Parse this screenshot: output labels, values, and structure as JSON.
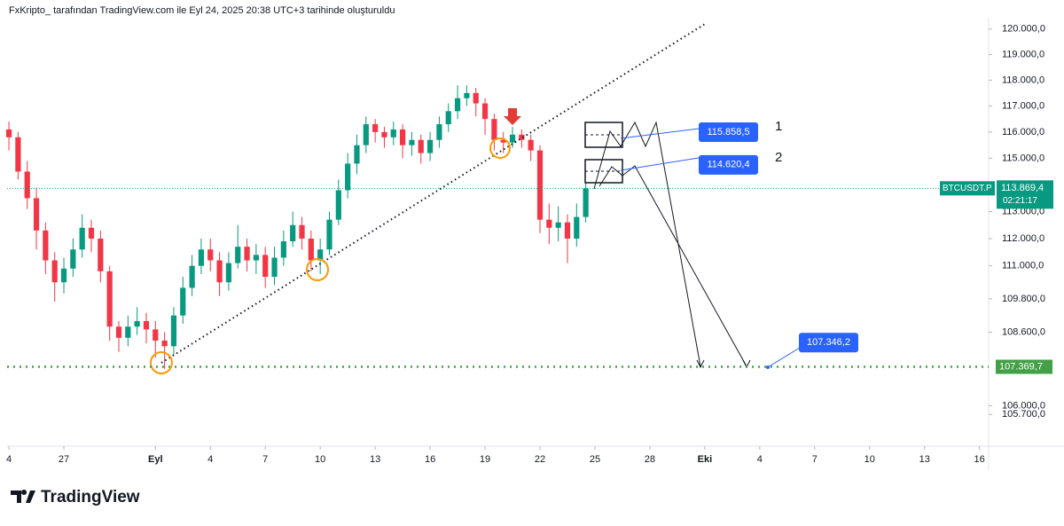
{
  "header": "FxKripto_ tarafından TradingView.com ile Eyl 24, 2025 20:38 UTC+3 tarihinde oluşturuldu",
  "footer": "TradingView",
  "chart_data": {
    "type": "candlestick",
    "symbol": "BTCUSDT.P",
    "x": [
      -8,
      -7.5,
      -7,
      -6.5,
      -6,
      -5.5,
      -5,
      -4.5,
      -4,
      -3.5,
      -3,
      -2.5,
      -2,
      -1.5,
      -1,
      -0.5,
      0,
      0.5,
      1,
      1.5,
      2,
      2.5,
      3,
      3.5,
      4,
      4.5,
      5,
      5.5,
      6,
      6.5,
      7,
      7.5,
      8,
      8.5,
      9,
      9.5,
      10,
      10.5,
      11,
      11.5,
      12,
      12.5,
      13,
      13.5,
      14,
      14.5,
      15,
      15.5,
      16,
      16.5,
      17,
      17.5,
      18,
      18.5,
      19,
      19.5,
      20,
      20.5,
      21,
      21.5,
      22,
      22.5,
      23,
      23.5
    ],
    "open": [
      116100,
      115800,
      114500,
      113500,
      112300,
      111200,
      110400,
      110900,
      111600,
      112400,
      112000,
      110800,
      108800,
      108400,
      108800,
      109000,
      108700,
      108300,
      108100,
      109200,
      110200,
      111000,
      111600,
      111200,
      110400,
      111100,
      111700,
      111200,
      111400,
      110600,
      111300,
      111900,
      112500,
      112000,
      111200,
      111600,
      112700,
      113800,
      114800,
      115500,
      116300,
      116000,
      115800,
      116100,
      115500,
      115700,
      115200,
      115700,
      116300,
      116800,
      117300,
      117500,
      117100,
      116500,
      115700,
      115600,
      115900,
      115700,
      115300,
      112700,
      112400,
      112600,
      112000,
      112800
    ],
    "high": [
      116400,
      116000,
      114900,
      113900,
      112600,
      111500,
      111300,
      112000,
      112900,
      112700,
      112300,
      111000,
      109000,
      109200,
      109500,
      109300,
      109000,
      108600,
      109500,
      110600,
      111400,
      112000,
      112000,
      111500,
      111500,
      112500,
      112000,
      111800,
      111700,
      111700,
      112300,
      113000,
      112800,
      112300,
      112000,
      113000,
      114200,
      115200,
      115900,
      116600,
      116500,
      116200,
      116400,
      116300,
      116000,
      115900,
      116000,
      116600,
      117100,
      117800,
      117800,
      117700,
      117300,
      116700,
      116000,
      116200,
      116100,
      115900,
      115500,
      113300,
      113200,
      112900,
      113300,
      114100
    ],
    "low": [
      115300,
      114200,
      113100,
      111600,
      110700,
      109700,
      110000,
      110600,
      111300,
      111500,
      110400,
      108300,
      107900,
      108100,
      108500,
      108200,
      107700,
      107300,
      107800,
      108900,
      109900,
      110700,
      110800,
      109900,
      110100,
      110900,
      110800,
      110700,
      110200,
      110300,
      111000,
      111700,
      111600,
      110800,
      110700,
      111400,
      112500,
      113500,
      114400,
      115200,
      115600,
      115400,
      115500,
      115000,
      115100,
      114800,
      114900,
      115400,
      116000,
      116500,
      117000,
      116600,
      115900,
      115300,
      115200,
      115400,
      115400,
      114900,
      112200,
      111800,
      111900,
      111100,
      111700,
      112600
    ],
    "close": [
      115800,
      114500,
      113500,
      112300,
      111200,
      110400,
      110900,
      111600,
      112400,
      112000,
      110800,
      108800,
      108400,
      108800,
      109000,
      108700,
      108300,
      108100,
      109200,
      110200,
      111000,
      111600,
      111200,
      110400,
      111100,
      111700,
      111200,
      111400,
      110600,
      111300,
      111900,
      112500,
      112000,
      111200,
      111600,
      112700,
      113800,
      114800,
      115500,
      116300,
      116000,
      115800,
      116100,
      115500,
      115700,
      115200,
      115700,
      116300,
      116800,
      117300,
      117500,
      117100,
      116500,
      115700,
      115600,
      115900,
      115700,
      115300,
      112700,
      112400,
      112600,
      112000,
      112800,
      113869.4
    ],
    "up_color": "#089981",
    "down_color": "#f23645",
    "log_scale": true,
    "grid": false,
    "ylim": [
      104600,
      120450
    ],
    "yticks": [
      {
        "value": 120000,
        "label": "120.000,0"
      },
      {
        "value": 119000,
        "label": "119.000,0"
      },
      {
        "value": 118000,
        "label": "118.000,0"
      },
      {
        "value": 117000,
        "label": "117.000,0"
      },
      {
        "value": 116000,
        "label": "116.000,0"
      },
      {
        "value": 115000,
        "label": "115.000,0"
      },
      {
        "value": 113000,
        "label": "113.000,0"
      },
      {
        "value": 112000,
        "label": "112.000,0"
      },
      {
        "value": 111000,
        "label": "111.000,0"
      },
      {
        "value": 109800,
        "label": "109.800,0"
      },
      {
        "value": 108600,
        "label": "108.600,0"
      },
      {
        "value": 106000,
        "label": "106.000,0"
      },
      {
        "value": 105700,
        "label": "105.700,0"
      }
    ],
    "xlim": [
      -8.1,
      45.5
    ],
    "xticks": [
      {
        "value": -8,
        "label": "4"
      },
      {
        "value": -5,
        "label": "27"
      },
      {
        "value": 0,
        "label": "Eyl"
      },
      {
        "value": 3,
        "label": "4"
      },
      {
        "value": 6,
        "label": "7"
      },
      {
        "value": 9,
        "label": "10"
      },
      {
        "value": 12,
        "label": "13"
      },
      {
        "value": 15,
        "label": "16"
      },
      {
        "value": 18,
        "label": "19"
      },
      {
        "value": 21,
        "label": "22"
      },
      {
        "value": 24,
        "label": "25"
      },
      {
        "value": 27,
        "label": "28"
      },
      {
        "value": 30,
        "label": "Eki"
      },
      {
        "value": 33,
        "label": "4"
      },
      {
        "value": 36,
        "label": "7"
      },
      {
        "value": 39,
        "label": "10"
      },
      {
        "value": 42,
        "label": "13"
      },
      {
        "value": 45,
        "label": "16"
      }
    ],
    "last_price": {
      "value": 113869.4,
      "label": "113.869,4",
      "color": "#089981"
    },
    "countdown": "02:21:17",
    "levels": [
      {
        "value": 107369.7,
        "label": "107.369,7",
        "color": "#43a047"
      }
    ],
    "annotations": [
      {
        "value": 115858.5,
        "label": "115.858,5"
      },
      {
        "value": 114620.4,
        "label": "114.620,4"
      },
      {
        "value": 107346.2,
        "label": "107.346,2"
      }
    ],
    "notes": [
      "1",
      "2"
    ]
  }
}
